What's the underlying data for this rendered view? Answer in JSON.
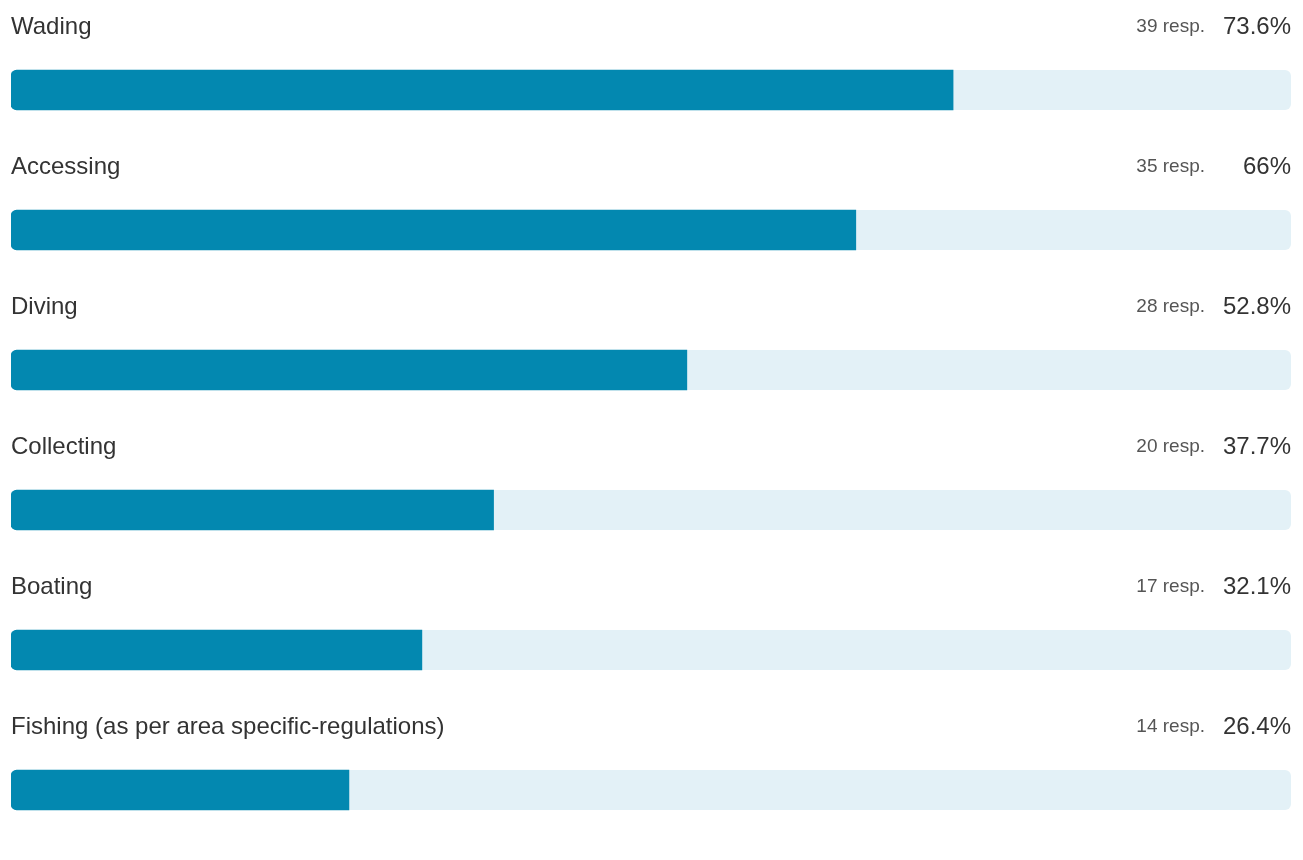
{
  "chart_data": {
    "type": "bar",
    "orientation": "horizontal",
    "categories": [
      "Wading",
      "Accessing",
      "Diving",
      "Collecting",
      "Boating",
      "Fishing (as per area specific-regulations)"
    ],
    "values": [
      73.6,
      66,
      52.8,
      37.7,
      32.1,
      26.4
    ],
    "value_labels": [
      "73.6%",
      "66%",
      "52.8%",
      "37.7%",
      "32.1%",
      "26.4%"
    ],
    "color": "#0388b0",
    "xlim": [
      0,
      100
    ],
    "tick_labels": false,
    "grid": false,
    "legend": false,
    "annotations": [
      "39 resp.",
      "35 resp.",
      "28 resp.",
      "20 resp.",
      "17 resp.",
      "14 resp."
    ]
  }
}
